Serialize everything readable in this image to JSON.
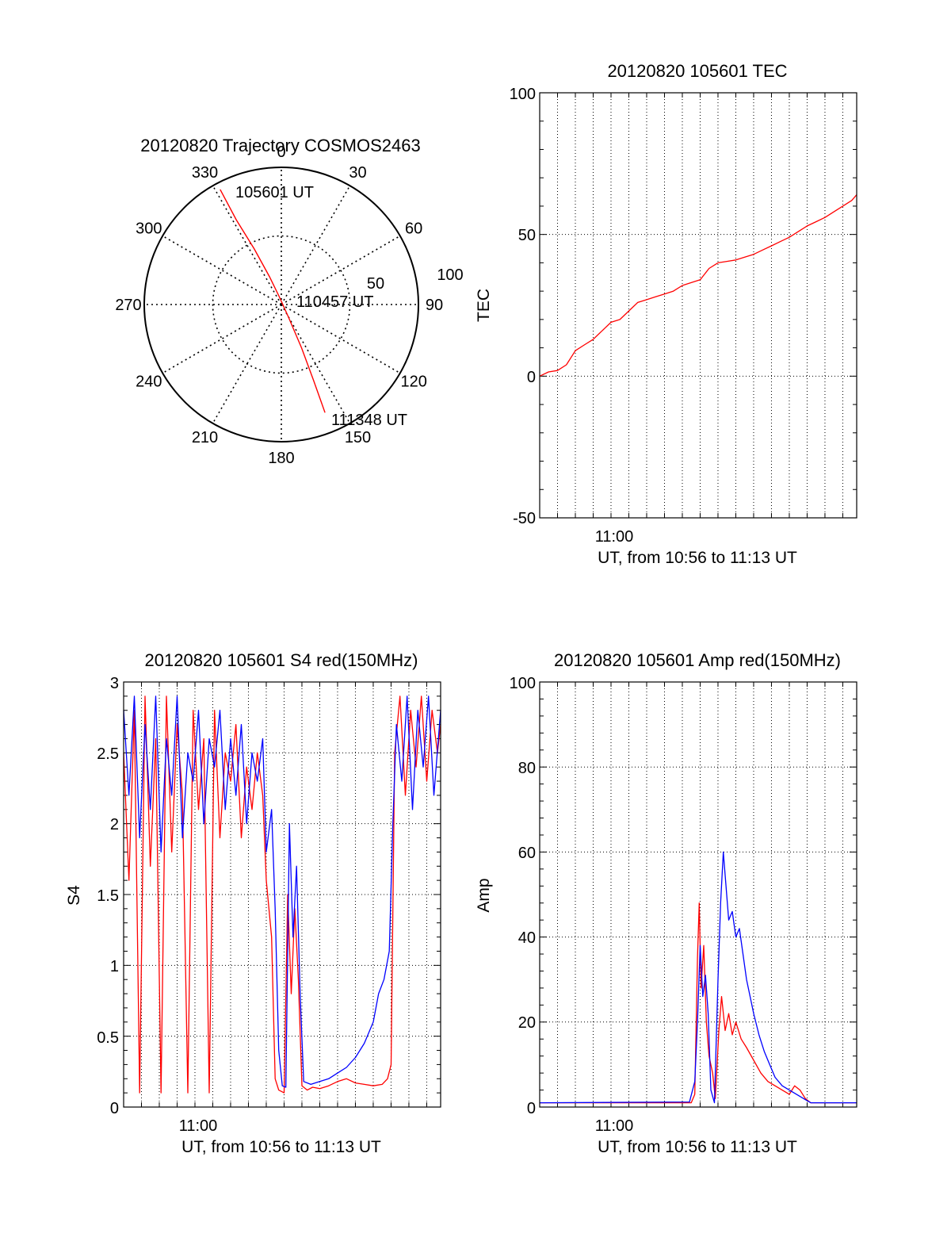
{
  "chart_data": [
    {
      "type": "polar-trajectory",
      "title": "20120820 Trajectory COSMOS2463",
      "azimuth_labels": [
        "0",
        "30",
        "60",
        "90",
        "120",
        "150",
        "180",
        "210",
        "240",
        "270",
        "300",
        "330"
      ],
      "radius_labels": [
        "50",
        "100"
      ],
      "radius_max": 100,
      "annotations": [
        {
          "text": "105601 UT"
        },
        {
          "text": "110457 UT"
        },
        {
          "text": "111348 UT"
        }
      ],
      "series": [
        {
          "color": "#ff0000",
          "points": [
            {
              "az": 332,
              "r": 95
            },
            {
              "az": 332,
              "r": 70
            },
            {
              "az": 334,
              "r": 45
            },
            {
              "az": 337,
              "r": 22
            },
            {
              "az": 345,
              "r": 6
            },
            {
              "az": 150,
              "r": 10
            },
            {
              "az": 155,
              "r": 35
            },
            {
              "az": 157,
              "r": 60
            },
            {
              "az": 158,
              "r": 85
            }
          ]
        }
      ]
    },
    {
      "type": "line",
      "title": "20120820 105601 TEC",
      "xlabel": "UT, from 10:56 to 11:13 UT",
      "ylabel": "TEC",
      "xlim": [
        0,
        17.78
      ],
      "ylim": [
        -50,
        100
      ],
      "yticks": [
        "-50",
        "0",
        "50",
        "100"
      ],
      "xticks": [
        {
          "value": 4,
          "label": "11:00"
        }
      ],
      "grid": true,
      "series": [
        {
          "color": "#ff0000",
          "points": [
            [
              0,
              0
            ],
            [
              0.5,
              1.5
            ],
            [
              1,
              2
            ],
            [
              1.5,
              4
            ],
            [
              2,
              9
            ],
            [
              2.5,
              11
            ],
            [
              3,
              13
            ],
            [
              3.5,
              16
            ],
            [
              4,
              19
            ],
            [
              4.5,
              20
            ],
            [
              5,
              23
            ],
            [
              5.5,
              26
            ],
            [
              6,
              27
            ],
            [
              6.5,
              28
            ],
            [
              7,
              29
            ],
            [
              7.5,
              30
            ],
            [
              8,
              32
            ],
            [
              8.5,
              33
            ],
            [
              9,
              34
            ],
            [
              9.5,
              38
            ],
            [
              10,
              40
            ],
            [
              10.5,
              40.5
            ],
            [
              11,
              41
            ],
            [
              11.5,
              42
            ],
            [
              12,
              43
            ],
            [
              12.5,
              44.5
            ],
            [
              13,
              46
            ],
            [
              13.5,
              47.5
            ],
            [
              14,
              49
            ],
            [
              14.5,
              51
            ],
            [
              15,
              53
            ],
            [
              15.5,
              54.5
            ],
            [
              16,
              56
            ],
            [
              16.5,
              58
            ],
            [
              17,
              60
            ],
            [
              17.5,
              62
            ],
            [
              17.78,
              64
            ]
          ]
        }
      ]
    },
    {
      "type": "line",
      "title": "20120820 105601 S4 red(150MHz)",
      "xlabel": "UT, from 10:56 to 11:13 UT",
      "ylabel": "S4",
      "xlim": [
        0,
        17.78
      ],
      "ylim": [
        0,
        3
      ],
      "yticks": [
        "0",
        "0.5",
        "1",
        "1.5",
        "2",
        "2.5",
        "3"
      ],
      "xticks": [
        {
          "value": 4,
          "label": "11:00"
        }
      ],
      "grid": true,
      "series": [
        {
          "color": "#ff0000",
          "points": [
            [
              0,
              2.5
            ],
            [
              0.3,
              1.6
            ],
            [
              0.6,
              2.8
            ],
            [
              0.9,
              0.1
            ],
            [
              1.2,
              2.9
            ],
            [
              1.5,
              1.7
            ],
            [
              1.8,
              2.6
            ],
            [
              2.1,
              0.1
            ],
            [
              2.4,
              2.9
            ],
            [
              2.7,
              1.8
            ],
            [
              3,
              2.7
            ],
            [
              3.3,
              2.2
            ],
            [
              3.6,
              0.1
            ],
            [
              3.9,
              2.8
            ],
            [
              4.2,
              2.1
            ],
            [
              4.5,
              2.6
            ],
            [
              4.8,
              0.1
            ],
            [
              5.1,
              2.8
            ],
            [
              5.4,
              1.9
            ],
            [
              5.7,
              2.5
            ],
            [
              6,
              2.3
            ],
            [
              6.3,
              2.7
            ],
            [
              6.6,
              1.9
            ],
            [
              6.9,
              2.4
            ],
            [
              7.2,
              2.1
            ],
            [
              7.5,
              2.5
            ],
            [
              7.8,
              2.2
            ],
            [
              8,
              1.6
            ],
            [
              8.3,
              1.2
            ],
            [
              8.5,
              0.2
            ],
            [
              8.7,
              0.12
            ],
            [
              9,
              0.1
            ],
            [
              9.2,
              1.5
            ],
            [
              9.4,
              0.8
            ],
            [
              9.6,
              1.4
            ],
            [
              9.8,
              0.9
            ],
            [
              10,
              0.15
            ],
            [
              10.3,
              0.12
            ],
            [
              10.6,
              0.14
            ],
            [
              11,
              0.13
            ],
            [
              11.5,
              0.15
            ],
            [
              12,
              0.18
            ],
            [
              12.5,
              0.2
            ],
            [
              13,
              0.17
            ],
            [
              13.5,
              0.16
            ],
            [
              14,
              0.15
            ],
            [
              14.5,
              0.16
            ],
            [
              14.8,
              0.2
            ],
            [
              15,
              0.3
            ],
            [
              15.2,
              2.5
            ],
            [
              15.5,
              2.9
            ],
            [
              15.8,
              2.2
            ],
            [
              16.1,
              2.8
            ],
            [
              16.4,
              2.4
            ],
            [
              16.7,
              2.9
            ],
            [
              17,
              2.3
            ],
            [
              17.3,
              2.8
            ],
            [
              17.6,
              2.5
            ],
            [
              17.78,
              2.7
            ]
          ]
        },
        {
          "color": "#0000ff",
          "points": [
            [
              0,
              2.8
            ],
            [
              0.3,
              2.2
            ],
            [
              0.6,
              2.9
            ],
            [
              0.9,
              1.9
            ],
            [
              1.2,
              2.7
            ],
            [
              1.5,
              2.1
            ],
            [
              1.8,
              2.9
            ],
            [
              2.1,
              1.8
            ],
            [
              2.4,
              2.6
            ],
            [
              2.7,
              2.2
            ],
            [
              3,
              2.9
            ],
            [
              3.3,
              1.9
            ],
            [
              3.6,
              2.5
            ],
            [
              3.9,
              2.3
            ],
            [
              4.2,
              2.8
            ],
            [
              4.5,
              2.0
            ],
            [
              4.8,
              2.6
            ],
            [
              5.1,
              2.4
            ],
            [
              5.4,
              2.8
            ],
            [
              5.7,
              2.1
            ],
            [
              6,
              2.6
            ],
            [
              6.3,
              2.2
            ],
            [
              6.6,
              2.7
            ],
            [
              6.9,
              2.0
            ],
            [
              7.2,
              2.5
            ],
            [
              7.5,
              2.3
            ],
            [
              7.8,
              2.6
            ],
            [
              8,
              1.8
            ],
            [
              8.3,
              2.1
            ],
            [
              8.5,
              1.4
            ],
            [
              8.7,
              0.4
            ],
            [
              8.9,
              0.15
            ],
            [
              9.1,
              0.14
            ],
            [
              9.3,
              2.0
            ],
            [
              9.5,
              1.2
            ],
            [
              9.7,
              1.7
            ],
            [
              9.9,
              0.8
            ],
            [
              10.1,
              0.18
            ],
            [
              10.5,
              0.16
            ],
            [
              11,
              0.18
            ],
            [
              11.5,
              0.2
            ],
            [
              12,
              0.24
            ],
            [
              12.5,
              0.28
            ],
            [
              13,
              0.35
            ],
            [
              13.5,
              0.45
            ],
            [
              14,
              0.6
            ],
            [
              14.3,
              0.8
            ],
            [
              14.6,
              0.9
            ],
            [
              14.9,
              1.1
            ],
            [
              15.1,
              2.0
            ],
            [
              15.3,
              2.7
            ],
            [
              15.6,
              2.3
            ],
            [
              15.9,
              2.9
            ],
            [
              16.2,
              2.1
            ],
            [
              16.5,
              2.8
            ],
            [
              16.8,
              2.4
            ],
            [
              17.1,
              2.9
            ],
            [
              17.4,
              2.2
            ],
            [
              17.78,
              2.8
            ]
          ]
        }
      ]
    },
    {
      "type": "line",
      "title": "20120820 105601 Amp red(150MHz)",
      "xlabel": "UT, from 10:56 to 11:13 UT",
      "ylabel": "Amp",
      "xlim": [
        0,
        17.78
      ],
      "ylim": [
        0,
        100
      ],
      "yticks": [
        "0",
        "20",
        "40",
        "60",
        "80",
        "100"
      ],
      "xticks": [
        {
          "value": 4,
          "label": "11:00"
        }
      ],
      "grid": true,
      "series": [
        {
          "color": "#ff0000",
          "points": [
            [
              0,
              1
            ],
            [
              8.5,
              1
            ],
            [
              8.7,
              3
            ],
            [
              8.85,
              35
            ],
            [
              8.95,
              48
            ],
            [
              9.05,
              28
            ],
            [
              9.2,
              38
            ],
            [
              9.35,
              20
            ],
            [
              9.5,
              12
            ],
            [
              9.7,
              8
            ],
            [
              9.85,
              2
            ],
            [
              10.05,
              18
            ],
            [
              10.2,
              26
            ],
            [
              10.4,
              18
            ],
            [
              10.6,
              22
            ],
            [
              10.8,
              17
            ],
            [
              11,
              20
            ],
            [
              11.3,
              16
            ],
            [
              11.6,
              14
            ],
            [
              12,
              11
            ],
            [
              12.4,
              8
            ],
            [
              12.8,
              6
            ],
            [
              13.2,
              5
            ],
            [
              13.6,
              4
            ],
            [
              14,
              3
            ],
            [
              14.3,
              5
            ],
            [
              14.6,
              4
            ],
            [
              14.9,
              2
            ],
            [
              15.2,
              1
            ],
            [
              17.78,
              1
            ]
          ]
        },
        {
          "color": "#0000ff",
          "points": [
            [
              0,
              1
            ],
            [
              8.4,
              1.2
            ],
            [
              8.7,
              6
            ],
            [
              8.85,
              20
            ],
            [
              9.0,
              38
            ],
            [
              9.15,
              26
            ],
            [
              9.3,
              31
            ],
            [
              9.45,
              22
            ],
            [
              9.6,
              4
            ],
            [
              9.8,
              1
            ],
            [
              10.0,
              30
            ],
            [
              10.15,
              48
            ],
            [
              10.3,
              60
            ],
            [
              10.45,
              52
            ],
            [
              10.6,
              44
            ],
            [
              10.8,
              46
            ],
            [
              11.0,
              40
            ],
            [
              11.2,
              42
            ],
            [
              11.4,
              36
            ],
            [
              11.6,
              30
            ],
            [
              11.8,
              26
            ],
            [
              12.0,
              22
            ],
            [
              12.3,
              17
            ],
            [
              12.6,
              13
            ],
            [
              12.9,
              10
            ],
            [
              13.2,
              7
            ],
            [
              13.6,
              5
            ],
            [
              14.0,
              4
            ],
            [
              14.4,
              3
            ],
            [
              14.8,
              2
            ],
            [
              15.2,
              1
            ],
            [
              17.78,
              1
            ]
          ]
        }
      ]
    }
  ]
}
